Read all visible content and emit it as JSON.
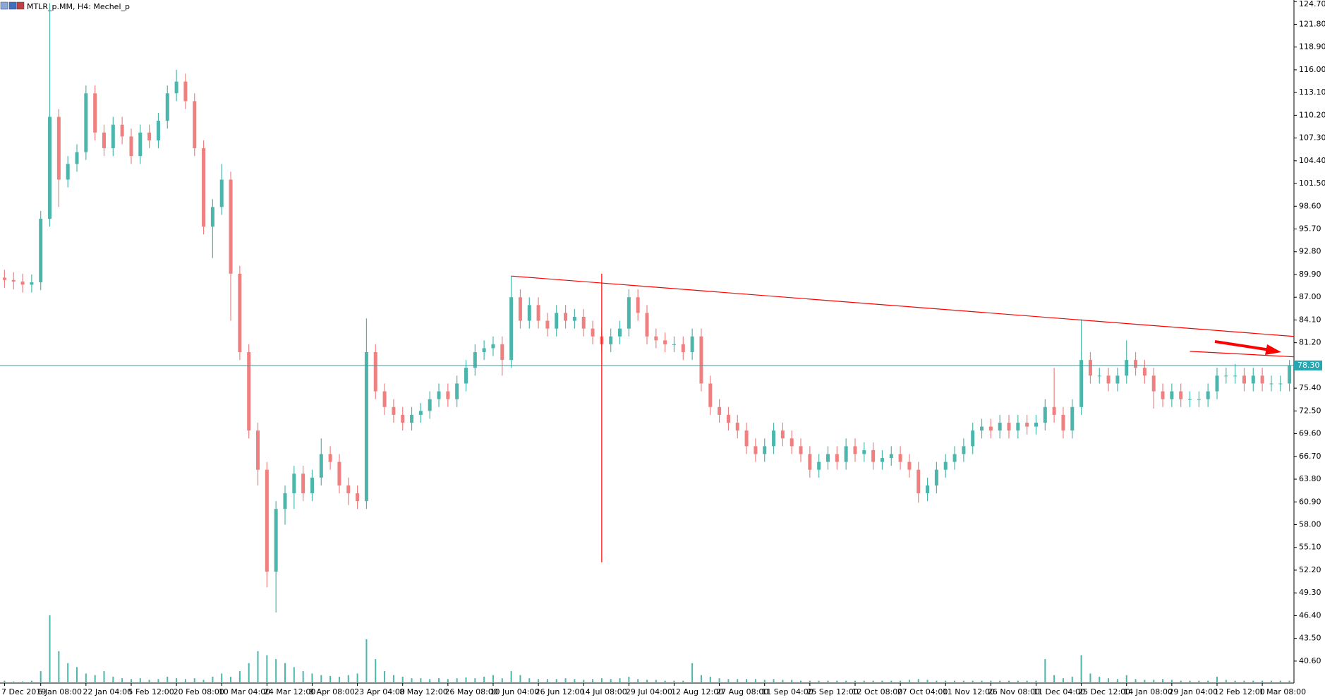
{
  "chart_data": {
    "type": "candlestick",
    "title": "MTLR_p.MM, H4:  Mechel_p",
    "categories": [
      "7 Dec 2019",
      null,
      null,
      null,
      "6 Jan 08:00",
      null,
      null,
      null,
      null,
      "22 Jan 04:00",
      null,
      null,
      null,
      null,
      "5 Feb 12:00",
      null,
      null,
      null,
      null,
      "20 Feb 08:00",
      null,
      null,
      null,
      null,
      "10 Mar 04:00",
      null,
      null,
      null,
      null,
      "24 Mar 12:00",
      null,
      null,
      null,
      null,
      "8 Apr 08:00",
      null,
      null,
      null,
      null,
      "23 Apr 04:00",
      null,
      null,
      null,
      null,
      "8 May 12:00",
      null,
      null,
      null,
      null,
      "26 May 08:00",
      null,
      null,
      null,
      null,
      "10 Jun 04:00",
      null,
      null,
      null,
      null,
      "26 Jun 12:00",
      null,
      null,
      null,
      null,
      "14 Jul 08:00",
      null,
      null,
      null,
      null,
      "29 Jul 04:00",
      null,
      null,
      null,
      null,
      "12 Aug 12:00",
      null,
      null,
      null,
      null,
      "27 Aug 08:00",
      null,
      null,
      null,
      null,
      "11 Sep 04:00",
      null,
      null,
      null,
      null,
      "25 Sep 12:00",
      null,
      null,
      null,
      null,
      "12 Oct 08:00",
      null,
      null,
      null,
      null,
      "27 Oct 04:00",
      null,
      null,
      null,
      null,
      "11 Nov 12:00",
      null,
      null,
      null,
      null,
      "26 Nov 08:00",
      null,
      null,
      null,
      null,
      "11 Dec 04:00",
      null,
      null,
      null,
      null,
      "25 Dec 12:00",
      null,
      null,
      null,
      null,
      "14 Jan 08:00",
      null,
      null,
      null,
      null,
      "29 Jan 04:00",
      null,
      null,
      null,
      null,
      "12 Feb 12:00",
      null,
      null,
      null,
      null,
      "1 Mar 08:00",
      null,
      null,
      null
    ],
    "open": [
      89.5,
      89.2,
      89.0,
      88.6,
      88.9,
      97.0,
      110.0,
      102.0,
      104.0,
      105.5,
      113,
      108,
      106,
      109,
      107.5,
      105,
      108,
      107,
      109.5,
      113,
      114.5,
      112,
      106,
      96,
      98.5,
      102,
      90,
      80,
      70,
      65,
      52,
      60,
      62,
      64.5,
      62,
      64,
      67,
      66,
      63,
      62,
      61,
      80,
      75,
      73,
      72,
      71,
      72,
      72.5,
      74,
      75,
      74,
      76,
      78,
      80,
      80.5,
      81,
      79,
      87,
      84,
      86,
      84,
      83,
      85,
      84,
      84.5,
      83,
      82,
      81,
      82,
      83,
      87,
      85,
      82,
      81.5,
      81,
      81,
      80,
      82,
      76,
      73,
      72,
      71,
      70,
      68,
      67,
      68,
      70,
      69,
      68,
      67,
      65,
      66,
      67,
      66,
      68,
      67,
      67.5,
      66,
      66.5,
      67,
      66,
      65,
      62,
      63,
      65,
      66,
      67,
      68,
      70,
      70.5,
      70,
      71,
      70,
      71,
      70.5,
      71,
      73,
      72,
      70,
      73,
      79,
      77,
      77,
      76,
      77,
      79,
      78,
      77,
      75,
      74,
      75,
      74,
      74,
      74,
      75,
      77,
      77,
      77,
      76,
      77,
      76,
      76,
      76
    ],
    "high": [
      90.5,
      90.2,
      90,
      89.9,
      98,
      124.5,
      111,
      105,
      106.5,
      114,
      114,
      109,
      110,
      110,
      108.5,
      109,
      109,
      110.5,
      114,
      116,
      115.5,
      113,
      107,
      99.5,
      104,
      103,
      91,
      81,
      71,
      66,
      61,
      63,
      65.5,
      65.5,
      65,
      69,
      68,
      67,
      64,
      63,
      84.3,
      81,
      76,
      74,
      73,
      73,
      73.5,
      75,
      76,
      76,
      77,
      79,
      81,
      81.5,
      82,
      82,
      89.7,
      88,
      87,
      87,
      85,
      86,
      86,
      85.5,
      85.5,
      84,
      83,
      83,
      84,
      88,
      88,
      86,
      83,
      82.5,
      82,
      82,
      83,
      83,
      77,
      74,
      73,
      72,
      71,
      69,
      69,
      71,
      71,
      70,
      69,
      68,
      67,
      68,
      68,
      69,
      69,
      68.5,
      68.5,
      67.5,
      68,
      68,
      67,
      66,
      64,
      66,
      67,
      68,
      69,
      71,
      71.5,
      71.5,
      72,
      72,
      72,
      72,
      72,
      74,
      78,
      73,
      74,
      84.2,
      80,
      78,
      78,
      78,
      81.5,
      80,
      79,
      78,
      76,
      76,
      76,
      75,
      75,
      76,
      78,
      78,
      78.5,
      78,
      78,
      78,
      77,
      77,
      79
    ],
    "low": [
      88.2,
      88.0,
      87.6,
      87.6,
      87.9,
      96.0,
      98.5,
      101,
      103,
      104.5,
      107,
      105,
      105,
      106.5,
      104,
      104,
      106,
      106,
      108.5,
      112,
      111,
      105,
      95,
      92,
      97.5,
      84,
      79,
      69,
      63,
      50,
      46.8,
      58,
      60,
      61,
      61,
      63,
      65,
      62,
      60.5,
      60,
      60,
      74,
      72,
      71,
      70,
      70,
      71,
      71.5,
      73,
      73,
      73,
      75,
      77,
      79,
      79.5,
      77,
      78,
      83,
      83,
      83,
      82,
      82,
      83,
      83,
      82,
      81,
      80,
      80,
      81,
      82,
      84,
      81,
      80.5,
      80,
      80,
      79,
      79,
      75,
      72,
      71,
      70,
      69,
      67,
      66,
      66,
      67,
      68,
      67,
      66,
      64,
      64,
      65,
      65,
      65,
      66,
      66,
      65,
      65,
      65.5,
      65,
      64,
      60.8,
      61,
      62,
      64,
      65,
      66,
      67,
      69,
      69,
      69,
      69,
      69,
      69.5,
      69.5,
      70,
      71,
      69,
      69,
      72,
      76,
      76,
      75,
      75,
      76,
      77,
      76,
      72.8,
      73,
      73,
      73,
      73,
      73,
      73,
      74,
      76,
      76,
      75,
      75,
      75,
      75,
      75,
      75
    ],
    "close": [
      89.2,
      89.0,
      88.6,
      88.9,
      97.0,
      110.0,
      102.0,
      104.0,
      105.5,
      113.0,
      108,
      106,
      109,
      107.5,
      105,
      108,
      107,
      109.5,
      113,
      114.5,
      112,
      106,
      96,
      98.5,
      102,
      90,
      80,
      70,
      65,
      52,
      60,
      62,
      64.5,
      62,
      64,
      67,
      66,
      63,
      62,
      61,
      80,
      75,
      73,
      72,
      71,
      72,
      72.5,
      74,
      75,
      74,
      76,
      78,
      80,
      80.5,
      81,
      79,
      87,
      84,
      86,
      84,
      83,
      85,
      84,
      84.5,
      83,
      82,
      81,
      82,
      83,
      87,
      85,
      82,
      81.5,
      81,
      81,
      80,
      82,
      76,
      73,
      72,
      71,
      70,
      68,
      67,
      68,
      70,
      69,
      68,
      67,
      65,
      66,
      67,
      66,
      68,
      67,
      67.5,
      66,
      66.5,
      67,
      66,
      65,
      62,
      63,
      65,
      66,
      67,
      68,
      70,
      70.5,
      70,
      71,
      70,
      71,
      70.5,
      71,
      73,
      72,
      70,
      73,
      79,
      77,
      77,
      76,
      77,
      79,
      78,
      77,
      75,
      74,
      75,
      74,
      74,
      74,
      75,
      77,
      77,
      77,
      76,
      77,
      76,
      76,
      76,
      78.3
    ],
    "volume": [
      3,
      2,
      2,
      3,
      15,
      85,
      40,
      25,
      20,
      12,
      10,
      15,
      8,
      6,
      5,
      6,
      4,
      5,
      8,
      6,
      5,
      6,
      4,
      8,
      12,
      8,
      15,
      25,
      40,
      35,
      30,
      25,
      20,
      15,
      12,
      10,
      9,
      8,
      10,
      12,
      55,
      30,
      15,
      10,
      8,
      6,
      6,
      5,
      6,
      5,
      6,
      7,
      6,
      8,
      10,
      6,
      15,
      10,
      6,
      5,
      5,
      5,
      6,
      5,
      4,
      5,
      6,
      5,
      6,
      8,
      5,
      4,
      4,
      3,
      3,
      3,
      25,
      10,
      8,
      6,
      5,
      5,
      5,
      5,
      4,
      5,
      4,
      4,
      3,
      3,
      3,
      3,
      3,
      3,
      3,
      3,
      3,
      3,
      3,
      3,
      4,
      5,
      4,
      3,
      3,
      3,
      3,
      3,
      3,
      3,
      3,
      3,
      3,
      3,
      3,
      30,
      10,
      6,
      8,
      35,
      12,
      8,
      6,
      5,
      10,
      5,
      4,
      4,
      5,
      4,
      3,
      3,
      3,
      3,
      8,
      4,
      3,
      3,
      3,
      3,
      3,
      3,
      3
    ],
    "colors": {
      "up": "#4db6ac",
      "down": "#f08080",
      "volume": "#4db6ac",
      "last_price": "#26a6b0",
      "trendline": "#ff0000"
    },
    "ylim": [
      37.8,
      124.9
    ],
    "yticks": [
      {
        "value": 40.6,
        "label": "40.60"
      },
      {
        "value": 43.5,
        "label": "43.50"
      },
      {
        "value": 46.4,
        "label": "46.40"
      },
      {
        "value": 49.3,
        "label": "49.30"
      },
      {
        "value": 52.2,
        "label": "52.20"
      },
      {
        "value": 55.1,
        "label": "55.10"
      },
      {
        "value": 58,
        "label": "58.00"
      },
      {
        "value": 60.9,
        "label": "60.90"
      },
      {
        "value": 63.8,
        "label": "63.80"
      },
      {
        "value": 66.7,
        "label": "66.70"
      },
      {
        "value": 69.6,
        "label": "69.60"
      },
      {
        "value": 72.5,
        "label": "72.50"
      },
      {
        "value": 75.4,
        "label": "75.40"
      },
      {
        "value": 81.2,
        "label": "81.20"
      },
      {
        "value": 84.1,
        "label": "84.10"
      },
      {
        "value": 87,
        "label": "87.00"
      },
      {
        "value": 89.9,
        "label": "89.90"
      },
      {
        "value": 92.8,
        "label": "92.80"
      },
      {
        "value": 95.7,
        "label": "95.70"
      },
      {
        "value": 98.6,
        "label": "98.60"
      },
      {
        "value": 101.5,
        "label": "101.50"
      },
      {
        "value": 104.4,
        "label": "104.40"
      },
      {
        "value": 107.3,
        "label": "107.30"
      },
      {
        "value": 110.2,
        "label": "110.20"
      },
      {
        "value": 113.1,
        "label": "113.10"
      },
      {
        "value": 116,
        "label": "116.00"
      },
      {
        "value": 118.9,
        "label": "118.90"
      },
      {
        "value": 121.8,
        "label": "121.80"
      },
      {
        "value": 124.7,
        "label": "124.70"
      }
    ],
    "last_price": {
      "value": 78.3,
      "label": "78.30"
    },
    "trendlines": [
      {
        "x": [
          56,
          142.5
        ],
        "y": [
          89.7,
          82.0
        ]
      },
      {
        "x": [
          66,
          66
        ],
        "y": [
          90,
          53.2
        ]
      },
      {
        "x": [
          131,
          142.5
        ],
        "y": [
          80.1,
          79.4
        ]
      }
    ]
  }
}
